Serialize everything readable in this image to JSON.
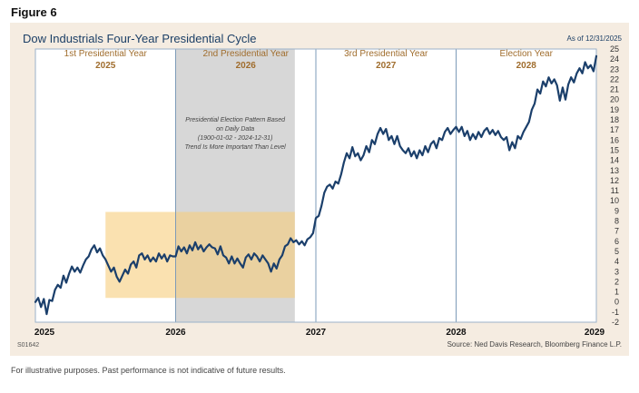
{
  "figure_label": "Figure 6",
  "as_of": "As of 12/31/2025",
  "code": "S01642",
  "source": "Source: Ned Davis Research, Bloomberg Finance L.P.",
  "footnote": "For illustrative purposes. Past performance is not indicative of future results.",
  "colors": {
    "line": "#1b3f6b",
    "highlight_box": "#f6cd7c",
    "midterm_shade": "#c9c9c9",
    "phase_text": "#a06d2d",
    "title_text": "#1c3f66"
  },
  "chart_data": {
    "type": "line",
    "title": "Dow Industrials Four-Year Presidential Cycle",
    "xlabel": "",
    "ylabel": "",
    "xlim": [
      2025,
      2029
    ],
    "ylim": [
      -2,
      25
    ],
    "y_ticks": [
      25,
      24,
      23,
      22,
      21,
      20,
      19,
      18,
      17,
      16,
      15,
      14,
      13,
      12,
      11,
      10,
      9,
      8,
      7,
      6,
      5,
      4,
      3,
      2,
      1,
      0,
      -1,
      -2
    ],
    "x_ticks": [
      "2025",
      "2026",
      "2027",
      "2028",
      "2029"
    ],
    "phases": [
      {
        "name": "1st Presidential Year",
        "year": "2025"
      },
      {
        "name": "2nd Presidential Year",
        "year": "2026"
      },
      {
        "name": "3rd Presidential Year",
        "year": "2027"
      },
      {
        "name": "Election Year",
        "year": "2028"
      }
    ],
    "shaded_region": {
      "x": [
        2026,
        2026.85
      ]
    },
    "highlight_box": {
      "x": [
        2025.5,
        2026.85
      ],
      "y": [
        0.4,
        8.9
      ]
    },
    "annotation": [
      "Presidential Election Pattern Based",
      "on Daily Data",
      "(1900-01-02 - 2024-12-31)",
      "Trend Is More Important Than Level"
    ],
    "series": [
      {
        "values": [
          [
            2025.0,
            0.0
          ],
          [
            2025.02,
            0.4
          ],
          [
            2025.04,
            -0.5
          ],
          [
            2025.06,
            0.3
          ],
          [
            2025.08,
            -1.2
          ],
          [
            2025.1,
            0.2
          ],
          [
            2025.12,
            0.1
          ],
          [
            2025.14,
            1.2
          ],
          [
            2025.16,
            1.7
          ],
          [
            2025.18,
            1.4
          ],
          [
            2025.2,
            2.6
          ],
          [
            2025.22,
            1.9
          ],
          [
            2025.24,
            2.8
          ],
          [
            2025.26,
            3.5
          ],
          [
            2025.28,
            3.0
          ],
          [
            2025.3,
            3.4
          ],
          [
            2025.32,
            2.9
          ],
          [
            2025.34,
            3.6
          ],
          [
            2025.36,
            4.2
          ],
          [
            2025.38,
            4.5
          ],
          [
            2025.4,
            5.2
          ],
          [
            2025.42,
            5.6
          ],
          [
            2025.44,
            4.9
          ],
          [
            2025.46,
            5.3
          ],
          [
            2025.48,
            4.6
          ],
          [
            2025.5,
            4.2
          ],
          [
            2025.52,
            3.6
          ],
          [
            2025.54,
            3.0
          ],
          [
            2025.56,
            3.4
          ],
          [
            2025.58,
            2.5
          ],
          [
            2025.6,
            2.0
          ],
          [
            2025.62,
            2.6
          ],
          [
            2025.64,
            3.2
          ],
          [
            2025.66,
            2.8
          ],
          [
            2025.68,
            3.7
          ],
          [
            2025.7,
            4.0
          ],
          [
            2025.72,
            3.4
          ],
          [
            2025.74,
            4.6
          ],
          [
            2025.76,
            4.8
          ],
          [
            2025.78,
            4.2
          ],
          [
            2025.8,
            4.6
          ],
          [
            2025.82,
            4.0
          ],
          [
            2025.84,
            4.4
          ],
          [
            2025.86,
            4.0
          ],
          [
            2025.88,
            4.8
          ],
          [
            2025.9,
            4.3
          ],
          [
            2025.92,
            4.7
          ],
          [
            2025.94,
            4.0
          ],
          [
            2025.96,
            4.6
          ],
          [
            2025.98,
            4.5
          ],
          [
            2026.0,
            4.5
          ],
          [
            2026.02,
            5.5
          ],
          [
            2026.04,
            5.0
          ],
          [
            2026.06,
            5.4
          ],
          [
            2026.08,
            4.8
          ],
          [
            2026.1,
            5.6
          ],
          [
            2026.12,
            5.1
          ],
          [
            2026.14,
            5.9
          ],
          [
            2026.16,
            5.2
          ],
          [
            2026.18,
            5.6
          ],
          [
            2026.2,
            5.0
          ],
          [
            2026.22,
            5.4
          ],
          [
            2026.24,
            5.7
          ],
          [
            2026.26,
            5.4
          ],
          [
            2026.28,
            5.3
          ],
          [
            2026.3,
            4.7
          ],
          [
            2026.32,
            5.5
          ],
          [
            2026.34,
            4.6
          ],
          [
            2026.36,
            4.4
          ],
          [
            2026.38,
            3.8
          ],
          [
            2026.4,
            4.5
          ],
          [
            2026.42,
            3.8
          ],
          [
            2026.44,
            4.3
          ],
          [
            2026.46,
            3.8
          ],
          [
            2026.48,
            3.4
          ],
          [
            2026.5,
            4.4
          ],
          [
            2026.52,
            4.7
          ],
          [
            2026.54,
            4.2
          ],
          [
            2026.56,
            4.8
          ],
          [
            2026.58,
            4.5
          ],
          [
            2026.6,
            4.0
          ],
          [
            2026.62,
            4.6
          ],
          [
            2026.64,
            4.2
          ],
          [
            2026.66,
            3.8
          ],
          [
            2026.68,
            3.0
          ],
          [
            2026.7,
            3.8
          ],
          [
            2026.72,
            3.3
          ],
          [
            2026.74,
            4.2
          ],
          [
            2026.76,
            4.6
          ],
          [
            2026.78,
            5.5
          ],
          [
            2026.8,
            5.7
          ],
          [
            2026.82,
            6.3
          ],
          [
            2026.84,
            5.9
          ],
          [
            2026.86,
            6.1
          ],
          [
            2026.88,
            5.7
          ],
          [
            2026.9,
            6.0
          ],
          [
            2026.92,
            5.6
          ],
          [
            2026.94,
            6.2
          ],
          [
            2026.96,
            6.4
          ],
          [
            2026.98,
            6.8
          ],
          [
            2027.0,
            8.3
          ],
          [
            2027.02,
            8.5
          ],
          [
            2027.04,
            9.5
          ],
          [
            2027.06,
            10.8
          ],
          [
            2027.08,
            11.4
          ],
          [
            2027.1,
            11.6
          ],
          [
            2027.12,
            11.2
          ],
          [
            2027.14,
            11.9
          ],
          [
            2027.16,
            11.7
          ],
          [
            2027.18,
            12.6
          ],
          [
            2027.2,
            13.8
          ],
          [
            2027.22,
            14.7
          ],
          [
            2027.24,
            14.2
          ],
          [
            2027.26,
            15.3
          ],
          [
            2027.28,
            14.4
          ],
          [
            2027.3,
            14.7
          ],
          [
            2027.32,
            14.0
          ],
          [
            2027.34,
            14.5
          ],
          [
            2027.36,
            15.4
          ],
          [
            2027.38,
            14.8
          ],
          [
            2027.4,
            16.0
          ],
          [
            2027.42,
            15.6
          ],
          [
            2027.44,
            16.6
          ],
          [
            2027.46,
            17.2
          ],
          [
            2027.48,
            16.6
          ],
          [
            2027.5,
            17.1
          ],
          [
            2027.52,
            16.0
          ],
          [
            2027.54,
            16.4
          ],
          [
            2027.56,
            15.6
          ],
          [
            2027.58,
            16.4
          ],
          [
            2027.6,
            15.4
          ],
          [
            2027.62,
            15.0
          ],
          [
            2027.64,
            14.7
          ],
          [
            2027.66,
            15.2
          ],
          [
            2027.68,
            14.4
          ],
          [
            2027.7,
            14.9
          ],
          [
            2027.72,
            14.2
          ],
          [
            2027.74,
            15.0
          ],
          [
            2027.76,
            14.5
          ],
          [
            2027.78,
            15.4
          ],
          [
            2027.8,
            14.8
          ],
          [
            2027.82,
            15.6
          ],
          [
            2027.84,
            15.9
          ],
          [
            2027.86,
            15.2
          ],
          [
            2027.88,
            16.2
          ],
          [
            2027.9,
            16.0
          ],
          [
            2027.92,
            16.8
          ],
          [
            2027.94,
            17.2
          ],
          [
            2027.96,
            16.6
          ],
          [
            2027.98,
            17.0
          ],
          [
            2028.0,
            17.3
          ],
          [
            2028.02,
            16.8
          ],
          [
            2028.04,
            17.3
          ],
          [
            2028.06,
            16.4
          ],
          [
            2028.08,
            16.9
          ],
          [
            2028.1,
            16.0
          ],
          [
            2028.12,
            16.6
          ],
          [
            2028.14,
            16.1
          ],
          [
            2028.16,
            16.8
          ],
          [
            2028.18,
            16.3
          ],
          [
            2028.2,
            16.9
          ],
          [
            2028.22,
            17.2
          ],
          [
            2028.24,
            16.6
          ],
          [
            2028.26,
            17.0
          ],
          [
            2028.28,
            16.5
          ],
          [
            2028.3,
            16.9
          ],
          [
            2028.32,
            16.3
          ],
          [
            2028.34,
            16.0
          ],
          [
            2028.36,
            16.3
          ],
          [
            2028.38,
            15.0
          ],
          [
            2028.4,
            15.8
          ],
          [
            2028.42,
            15.2
          ],
          [
            2028.44,
            16.4
          ],
          [
            2028.46,
            16.1
          ],
          [
            2028.48,
            16.8
          ],
          [
            2028.5,
            17.3
          ],
          [
            2028.52,
            17.8
          ],
          [
            2028.54,
            19.0
          ],
          [
            2028.56,
            19.6
          ],
          [
            2028.58,
            21.0
          ],
          [
            2028.6,
            20.6
          ],
          [
            2028.62,
            21.8
          ],
          [
            2028.64,
            21.3
          ],
          [
            2028.66,
            22.2
          ],
          [
            2028.68,
            21.6
          ],
          [
            2028.7,
            22.0
          ],
          [
            2028.72,
            21.4
          ],
          [
            2028.74,
            19.9
          ],
          [
            2028.76,
            21.2
          ],
          [
            2028.78,
            20.0
          ],
          [
            2028.8,
            21.5
          ],
          [
            2028.82,
            22.2
          ],
          [
            2028.84,
            21.7
          ],
          [
            2028.86,
            22.6
          ],
          [
            2028.88,
            23.1
          ],
          [
            2028.9,
            22.6
          ],
          [
            2028.92,
            23.7
          ],
          [
            2028.94,
            23.1
          ],
          [
            2028.96,
            23.4
          ],
          [
            2028.98,
            22.8
          ],
          [
            2029.0,
            24.3
          ]
        ]
      }
    ]
  }
}
